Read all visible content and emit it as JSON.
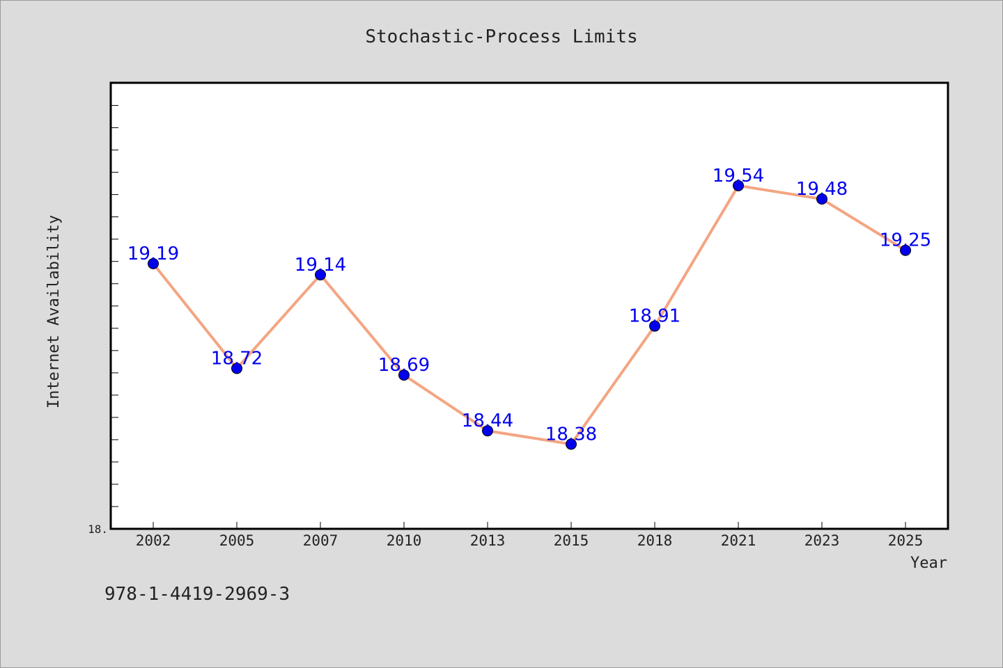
{
  "chart_data": {
    "type": "line",
    "title": "Stochastic-Process Limits",
    "xlabel": "Year",
    "ylabel": "Internet Availability",
    "categories": [
      "2002",
      "2005",
      "2007",
      "2010",
      "2013",
      "2015",
      "2018",
      "2021",
      "2023",
      "2025"
    ],
    "series": [
      {
        "values": [
          19.19,
          18.72,
          19.14,
          18.69,
          18.44,
          18.38,
          18.91,
          19.54,
          19.48,
          19.25
        ],
        "data_labels": [
          "19.19",
          "18.72",
          "19.14",
          "18.69",
          "18.44",
          "18.38",
          "18.91",
          "19.54",
          "19.48",
          "19.25"
        ]
      }
    ],
    "ylim": [
      18.0,
      20.0
    ],
    "ytick_labels": [
      "18."
    ],
    "grid": false,
    "colors": {
      "line": "#f4a582",
      "marker": "#0000ee",
      "data_label": "#0000ee",
      "background": "#dcdcdc",
      "plot_background": "#ffffff"
    }
  },
  "footnote": "978-1-4419-2969-3"
}
